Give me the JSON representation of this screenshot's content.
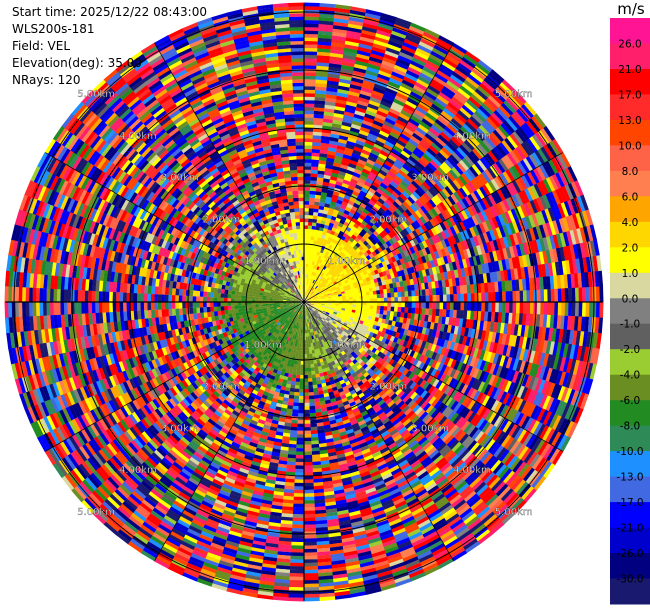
{
  "info": {
    "start_time": "Start time: 2025/12/22 08:43:00",
    "instrument": "WLS200s-181",
    "field": "Field: VEL",
    "elevation": "Elevation(deg): 35.00",
    "nrays": "NRays: 120"
  },
  "colorbar": {
    "unit": "m/s",
    "ticks": [
      "26.0",
      "21.0",
      "17.0",
      "13.0",
      "10.0",
      "8.0",
      "6.0",
      "4.0",
      "2.0",
      "1.0",
      "0.0",
      "-1.0",
      "-2.0",
      "-4.0",
      "-6.0",
      "-8.0",
      "-10.0",
      "-13.0",
      "-17.0",
      "-21.0",
      "-26.0",
      "-30.0"
    ],
    "colors": [
      "#ff1493",
      "#ff1f6b",
      "#ff0000",
      "#ff2a2a",
      "#ff4500",
      "#ff6347",
      "#ff7f50",
      "#ffa500",
      "#ffd700",
      "#ffff00",
      "#d8d8a0",
      "#808080",
      "#606060",
      "#9acd32",
      "#6b8e23",
      "#228b22",
      "#2e8b57",
      "#1e90ff",
      "#4169e1",
      "#0000ff",
      "#0000cd",
      "#000080",
      "#191970"
    ]
  },
  "chart_data": {
    "type": "heatmap",
    "subtype": "ppi-polar",
    "field": "VEL",
    "unit": "m/s",
    "nrays": 120,
    "elevation_deg": 35.0,
    "range_rings_km": [
      1,
      2,
      3,
      4,
      5
    ],
    "ring_labels": [
      "1.00km",
      "2.00km",
      "3.00km",
      "4.00km",
      "5.00km"
    ],
    "max_range_km": 5.15,
    "color_levels": [
      -30,
      -26,
      -21,
      -17,
      -13,
      -10,
      -8,
      -6,
      -4,
      -2,
      -1,
      0,
      1,
      2,
      4,
      6,
      8,
      10,
      13,
      17,
      21,
      26,
      30
    ],
    "pattern": "coherent wind signal within ~1.3 km (positive velocities to the east/north-east, negative to the south-west/west), noise beyond"
  }
}
